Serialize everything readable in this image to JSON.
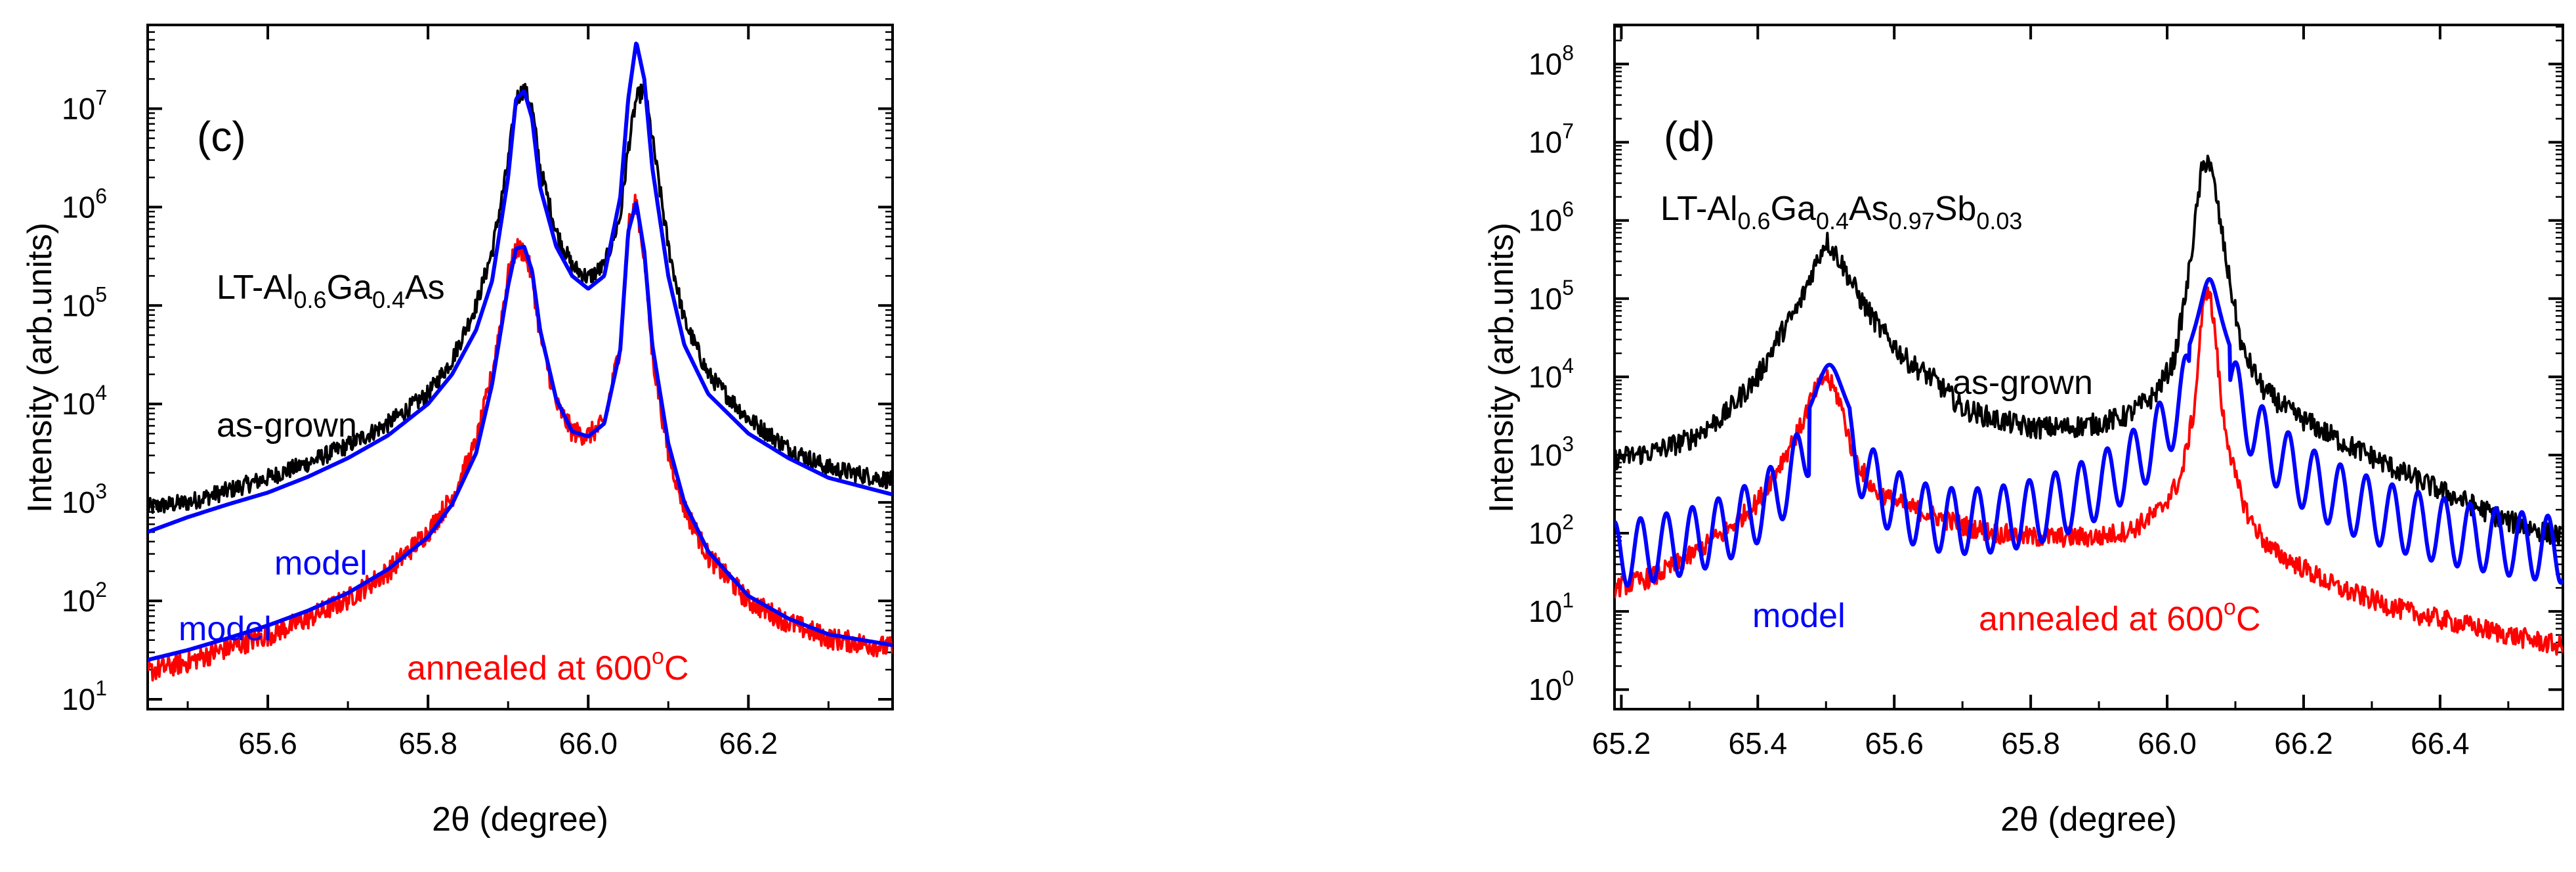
{
  "chart_data": [
    {
      "type": "line",
      "panel_label": "(c)",
      "xlabel": "2θ (degree)",
      "ylabel": "Intensity (arb.units)",
      "y_scale": "log",
      "xlim": [
        65.45,
        66.38
      ],
      "ylim_log10": [
        0.9,
        7.85
      ],
      "xticks": [
        "65.6",
        "65.8",
        "66.0",
        "66.2"
      ],
      "xtick_values": [
        65.6,
        65.8,
        66.0,
        66.2
      ],
      "yticks": [
        {
          "base": "10",
          "exp": "1",
          "log": 1
        },
        {
          "base": "10",
          "exp": "2",
          "log": 2
        },
        {
          "base": "10",
          "exp": "3",
          "log": 3
        },
        {
          "base": "10",
          "exp": "4",
          "log": 4
        },
        {
          "base": "10",
          "exp": "5",
          "log": 5
        },
        {
          "base": "10",
          "exp": "6",
          "log": 6
        },
        {
          "base": "10",
          "exp": "7",
          "log": 7
        }
      ],
      "colors": {
        "as_grown": "#000000",
        "annealed": "#ff0000",
        "model": "#0000ff"
      },
      "sample_label": {
        "a": "LT-Al",
        "b": "0.6",
        "c": "Ga",
        "d": "0.4",
        "e": "As"
      },
      "annotations": {
        "as_grown": "as-grown",
        "model_upper": "model",
        "model_lower": "model",
        "annealed_prefix": "annealed at 600",
        "annealed_sup": "o",
        "annealed_suffix": "C"
      },
      "series": [
        {
          "key": "as_grown",
          "x": [
            65.45,
            65.5,
            65.55,
            65.6,
            65.65,
            65.7,
            65.75,
            65.8,
            65.83,
            65.86,
            65.88,
            65.9,
            65.91,
            65.92,
            65.93,
            65.94,
            65.96,
            65.98,
            66.0,
            66.02,
            66.04,
            66.05,
            66.06,
            66.07,
            66.08,
            66.1,
            66.12,
            66.15,
            66.2,
            66.25,
            66.3,
            66.38
          ],
          "y_log": [
            2.95,
            3.0,
            3.12,
            3.25,
            3.4,
            3.58,
            3.8,
            4.1,
            4.45,
            5.0,
            5.55,
            6.45,
            7.1,
            7.2,
            7.0,
            6.4,
            5.75,
            5.4,
            5.28,
            5.4,
            5.9,
            6.6,
            7.1,
            7.2,
            6.7,
            5.6,
            4.85,
            4.3,
            3.85,
            3.55,
            3.35,
            3.22
          ],
          "noise": 0.09
        },
        {
          "key": "model_upper",
          "x": [
            65.45,
            65.5,
            65.55,
            65.6,
            65.65,
            65.7,
            65.75,
            65.8,
            65.83,
            65.86,
            65.88,
            65.9,
            65.91,
            65.92,
            65.93,
            65.94,
            65.96,
            65.98,
            66.0,
            66.02,
            66.04,
            66.05,
            66.06,
            66.07,
            66.08,
            66.1,
            66.12,
            66.15,
            66.2,
            66.25,
            66.3,
            66.38
          ],
          "y_log": [
            2.7,
            2.85,
            2.98,
            3.1,
            3.26,
            3.45,
            3.68,
            4.0,
            4.3,
            4.75,
            5.25,
            6.3,
            7.1,
            7.18,
            6.9,
            6.2,
            5.6,
            5.3,
            5.17,
            5.3,
            6.1,
            7.1,
            7.68,
            7.3,
            6.4,
            5.3,
            4.6,
            4.1,
            3.7,
            3.45,
            3.25,
            3.08
          ],
          "noise": 0
        },
        {
          "key": "annealed",
          "x": [
            65.45,
            65.5,
            65.55,
            65.6,
            65.65,
            65.7,
            65.75,
            65.8,
            65.83,
            65.86,
            65.88,
            65.9,
            65.91,
            65.92,
            65.93,
            65.94,
            65.96,
            65.98,
            66.0,
            66.02,
            66.04,
            66.05,
            66.06,
            66.07,
            66.08,
            66.1,
            66.12,
            66.15,
            66.2,
            66.25,
            66.3,
            66.38
          ],
          "y_log": [
            1.28,
            1.38,
            1.52,
            1.65,
            1.82,
            2.02,
            2.3,
            2.7,
            3.05,
            3.6,
            4.3,
            5.3,
            5.58,
            5.55,
            5.3,
            4.7,
            4.0,
            3.72,
            3.68,
            3.8,
            4.6,
            5.8,
            6.05,
            5.5,
            4.5,
            3.5,
            2.95,
            2.45,
            2.0,
            1.78,
            1.62,
            1.52
          ],
          "noise": 0.11
        },
        {
          "key": "model_lower",
          "x": [
            65.45,
            65.5,
            65.55,
            65.6,
            65.65,
            65.7,
            65.75,
            65.8,
            65.83,
            65.86,
            65.88,
            65.9,
            65.91,
            65.92,
            65.93,
            65.94,
            65.96,
            65.98,
            66.0,
            66.02,
            66.04,
            66.05,
            66.06,
            66.07,
            66.08,
            66.1,
            66.12,
            66.15,
            66.2,
            66.25,
            66.3,
            66.38
          ],
          "y_log": [
            1.4,
            1.5,
            1.62,
            1.75,
            1.9,
            2.08,
            2.32,
            2.65,
            2.98,
            3.5,
            4.2,
            5.2,
            5.58,
            5.6,
            5.35,
            4.75,
            4.05,
            3.72,
            3.67,
            3.8,
            4.55,
            5.75,
            6.05,
            5.55,
            4.6,
            3.6,
            3.0,
            2.5,
            2.05,
            1.82,
            1.66,
            1.55
          ],
          "noise": 0
        }
      ]
    },
    {
      "type": "line",
      "panel_label": "(d)",
      "xlabel": "2θ (degree)",
      "ylabel": "Intensity (arb.units)",
      "y_scale": "log",
      "xlim": [
        65.19,
        66.58
      ],
      "ylim_log10": [
        -0.25,
        8.5
      ],
      "xticks": [
        "65.2",
        "65.4",
        "65.6",
        "65.8",
        "66.0",
        "66.2",
        "66.4"
      ],
      "xtick_values": [
        65.2,
        65.4,
        65.6,
        65.8,
        66.0,
        66.2,
        66.4
      ],
      "yticks": [
        {
          "base": "10",
          "exp": "0",
          "log": 0
        },
        {
          "base": "10",
          "exp": "1",
          "log": 1
        },
        {
          "base": "10",
          "exp": "2",
          "log": 2
        },
        {
          "base": "10",
          "exp": "3",
          "log": 3
        },
        {
          "base": "10",
          "exp": "4",
          "log": 4
        },
        {
          "base": "10",
          "exp": "5",
          "log": 5
        },
        {
          "base": "10",
          "exp": "6",
          "log": 6
        },
        {
          "base": "10",
          "exp": "7",
          "log": 7
        },
        {
          "base": "10",
          "exp": "8",
          "log": 8
        }
      ],
      "colors": {
        "as_grown": "#000000",
        "annealed": "#ff0000",
        "model": "#0000ff"
      },
      "sample_label": {
        "a": "LT-Al",
        "b": "0.6",
        "c": "Ga",
        "d": "0.4",
        "e": "As",
        "f": "0.97",
        "g": "Sb",
        "h": "0.03"
      },
      "annotations": {
        "as_grown": "as-grown",
        "model": "model",
        "annealed_prefix": "annealed at 600",
        "annealed_sup": "o",
        "annealed_suffix": "C"
      },
      "series": [
        {
          "key": "as_grown",
          "x": [
            65.19,
            65.25,
            65.3,
            65.35,
            65.4,
            65.43,
            65.46,
            65.48,
            65.5,
            65.52,
            65.55,
            65.58,
            65.62,
            65.66,
            65.7,
            65.75,
            65.8,
            65.85,
            65.9,
            65.94,
            65.98,
            66.01,
            66.03,
            66.05,
            66.06,
            66.07,
            66.09,
            66.11,
            66.14,
            66.18,
            66.22,
            66.26,
            66.3,
            66.35,
            66.4,
            66.45,
            66.5,
            66.58
          ],
          "y_log": [
            2.95,
            3.05,
            3.2,
            3.5,
            4.0,
            4.5,
            4.9,
            5.35,
            5.75,
            5.5,
            5.0,
            4.6,
            4.2,
            3.95,
            3.6,
            3.45,
            3.35,
            3.35,
            3.4,
            3.5,
            3.75,
            4.2,
            5.2,
            6.6,
            6.82,
            6.4,
            5.3,
            4.35,
            3.85,
            3.55,
            3.35,
            3.15,
            2.98,
            2.75,
            2.55,
            2.35,
            2.15,
            1.95
          ],
          "noise": 0.14
        },
        {
          "key": "annealed",
          "x": [
            65.19,
            65.25,
            65.3,
            65.35,
            65.4,
            65.43,
            65.46,
            65.48,
            65.5,
            65.52,
            65.54,
            65.57,
            65.6,
            65.65,
            65.7,
            65.75,
            65.8,
            65.85,
            65.9,
            65.95,
            65.99,
            66.02,
            66.04,
            66.05,
            66.06,
            66.07,
            66.08,
            66.1,
            66.12,
            66.15,
            66.2,
            66.25,
            66.3,
            66.35,
            66.4,
            66.45,
            66.5,
            66.58
          ],
          "y_log": [
            1.3,
            1.45,
            1.7,
            2.0,
            2.4,
            2.85,
            3.3,
            3.75,
            4.02,
            3.7,
            3.0,
            2.55,
            2.4,
            2.25,
            2.1,
            2.0,
            1.95,
            1.95,
            1.95,
            2.05,
            2.3,
            2.7,
            3.6,
            4.7,
            5.2,
            4.6,
            3.6,
            2.7,
            2.2,
            1.8,
            1.55,
            1.3,
            1.15,
            1.0,
            0.9,
            0.8,
            0.7,
            0.55
          ],
          "noise": 0.13
        }
      ],
      "model": {
        "x_start": 65.19,
        "x_end": 66.58,
        "period": 0.038,
        "peaks": [
          {
            "center": 65.505,
            "height_log": 4.15,
            "width": 0.018,
            "shoulder": 0
          },
          {
            "center": 66.062,
            "height_log": 5.25,
            "width": 0.012,
            "shoulder": 0
          }
        ]
      }
    }
  ]
}
